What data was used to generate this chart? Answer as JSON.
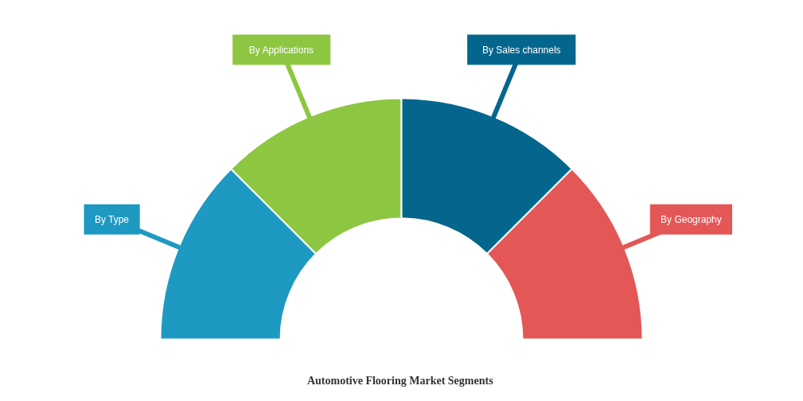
{
  "chart_data": {
    "type": "donut",
    "title": "Automotive Flooring Market  Segments",
    "categories": [
      "By Type",
      "By Applications",
      "By Sales channels",
      "By Geography"
    ],
    "values": [
      25,
      25,
      25,
      25
    ],
    "colors": [
      "#1e9ac2",
      "#8dc641",
      "#05668d",
      "#e35757"
    ]
  }
}
